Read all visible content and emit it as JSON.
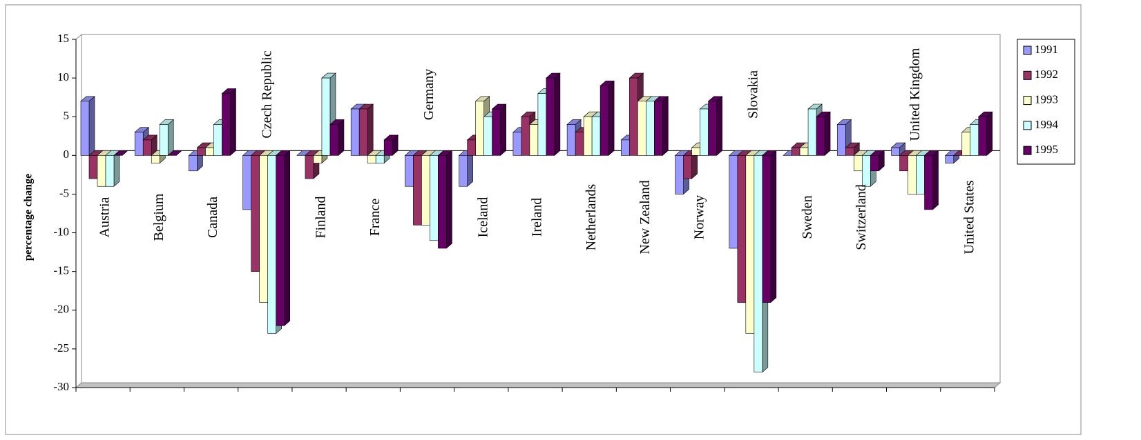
{
  "chart_data": {
    "type": "bar3d",
    "y_axis_label": "percentage change",
    "categories": [
      "Austria",
      "Belgium",
      "Canada",
      "Czech Republic",
      "Finland",
      "France",
      "Germany",
      "Iceland",
      "Ireland",
      "Netherlands",
      "New Zealand",
      "Norway",
      "Slovakia",
      "Sweden",
      "Switzerland",
      "United Kingdom",
      "United States"
    ],
    "series": [
      {
        "name": "1991",
        "color": "#9999ff",
        "values": [
          7,
          3,
          -2,
          -7,
          0,
          6,
          -4,
          -4,
          3,
          4,
          2,
          -5,
          -12,
          0,
          4,
          1,
          -1
        ]
      },
      {
        "name": "1992",
        "color": "#993366",
        "values": [
          -3,
          2,
          1,
          -15,
          -3,
          6,
          -9,
          2,
          5,
          3,
          10,
          -3,
          -19,
          1,
          1,
          -2,
          0
        ]
      },
      {
        "name": "1993",
        "color": "#ffffcc",
        "values": [
          -4,
          -1,
          1,
          -19,
          -1,
          -1,
          -9,
          7,
          4,
          5,
          7,
          1,
          -23,
          1,
          -2,
          -5,
          3
        ]
      },
      {
        "name": "1994",
        "color": "#ccffff",
        "values": [
          -4,
          4,
          4,
          -23,
          10,
          -1,
          -11,
          5,
          8,
          5,
          7,
          6,
          -28,
          6,
          -4,
          -5,
          4
        ]
      },
      {
        "name": "1995",
        "color": "#660066",
        "values": [
          0,
          0,
          8,
          -22,
          4,
          2,
          -12,
          6,
          10,
          9,
          7,
          7,
          -19,
          5,
          -2,
          -7,
          5
        ]
      }
    ],
    "ylim": [
      -30,
      15
    ],
    "yticks": [
      -30,
      -25,
      -20,
      -15,
      -10,
      -5,
      0,
      5,
      10,
      15
    ],
    "legend": "right"
  }
}
